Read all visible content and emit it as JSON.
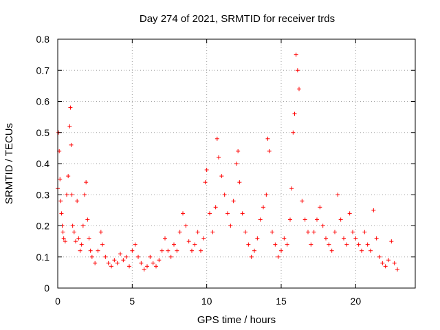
{
  "chart_data": {
    "type": "scatter",
    "title": "Day 274 of 2021, SRMTID for receiver trds",
    "xlabel": "GPS time / hours",
    "ylabel": "SRMTID / TECUs",
    "xlim": [
      0,
      24
    ],
    "ylim": [
      0,
      0.8
    ],
    "xticks": [
      0,
      5,
      10,
      15,
      20
    ],
    "yticks": [
      0,
      0.1,
      0.2,
      0.3,
      0.4,
      0.5,
      0.6,
      0.7,
      0.8
    ],
    "xtick_labels": [
      "0",
      "5",
      "10",
      "15",
      "20"
    ],
    "ytick_labels": [
      "0",
      "0.1",
      "0.2",
      "0.3",
      "0.4",
      "0.5",
      "0.6",
      "0.7",
      "0.8"
    ],
    "grid": true,
    "marker": "+",
    "color": "#ff0000",
    "series": [
      {
        "name": "SRMTID",
        "x": [
          0.0,
          0.05,
          0.1,
          0.15,
          0.2,
          0.25,
          0.3,
          0.35,
          0.4,
          0.5,
          0.6,
          0.7,
          0.8,
          0.85,
          0.9,
          0.95,
          1.0,
          1.1,
          1.2,
          1.3,
          1.4,
          1.5,
          1.6,
          1.7,
          1.8,
          1.9,
          2.0,
          2.1,
          2.2,
          2.3,
          2.5,
          2.7,
          2.9,
          3.0,
          3.2,
          3.4,
          3.6,
          3.8,
          4.0,
          4.2,
          4.4,
          4.6,
          4.8,
          5.0,
          5.2,
          5.4,
          5.6,
          5.8,
          6.0,
          6.2,
          6.4,
          6.6,
          6.8,
          7.0,
          7.2,
          7.4,
          7.6,
          7.8,
          8.0,
          8.2,
          8.4,
          8.6,
          8.8,
          9.0,
          9.2,
          9.4,
          9.6,
          9.8,
          9.9,
          10.0,
          10.2,
          10.4,
          10.6,
          10.7,
          10.8,
          11.0,
          11.2,
          11.4,
          11.6,
          11.8,
          12.0,
          12.1,
          12.2,
          12.4,
          12.6,
          12.8,
          13.0,
          13.2,
          13.4,
          13.6,
          13.8,
          14.0,
          14.1,
          14.2,
          14.4,
          14.6,
          14.8,
          15.0,
          15.2,
          15.4,
          15.6,
          15.7,
          15.8,
          15.9,
          16.0,
          16.1,
          16.2,
          16.4,
          16.6,
          16.8,
          17.0,
          17.2,
          17.4,
          17.6,
          17.8,
          18.0,
          18.2,
          18.4,
          18.6,
          18.8,
          19.0,
          19.2,
          19.4,
          19.6,
          19.8,
          20.0,
          20.2,
          20.4,
          20.6,
          20.8,
          21.0,
          21.2,
          21.4,
          21.6,
          21.8,
          22.0,
          22.2,
          22.4,
          22.6,
          22.8
        ],
        "y": [
          0.32,
          0.5,
          0.44,
          0.35,
          0.28,
          0.24,
          0.2,
          0.18,
          0.16,
          0.15,
          0.3,
          0.36,
          0.52,
          0.58,
          0.46,
          0.3,
          0.2,
          0.18,
          0.15,
          0.28,
          0.16,
          0.12,
          0.14,
          0.2,
          0.3,
          0.34,
          0.22,
          0.16,
          0.12,
          0.1,
          0.08,
          0.12,
          0.18,
          0.14,
          0.1,
          0.08,
          0.07,
          0.09,
          0.08,
          0.11,
          0.09,
          0.1,
          0.07,
          0.12,
          0.14,
          0.1,
          0.08,
          0.06,
          0.07,
          0.1,
          0.08,
          0.07,
          0.09,
          0.12,
          0.16,
          0.12,
          0.1,
          0.14,
          0.12,
          0.18,
          0.24,
          0.2,
          0.15,
          0.12,
          0.14,
          0.18,
          0.12,
          0.16,
          0.34,
          0.38,
          0.24,
          0.18,
          0.26,
          0.48,
          0.42,
          0.36,
          0.3,
          0.24,
          0.2,
          0.28,
          0.4,
          0.44,
          0.34,
          0.24,
          0.18,
          0.14,
          0.1,
          0.12,
          0.16,
          0.22,
          0.26,
          0.3,
          0.48,
          0.44,
          0.18,
          0.14,
          0.1,
          0.12,
          0.16,
          0.14,
          0.22,
          0.32,
          0.5,
          0.56,
          0.75,
          0.7,
          0.64,
          0.28,
          0.22,
          0.18,
          0.14,
          0.18,
          0.22,
          0.26,
          0.2,
          0.16,
          0.14,
          0.12,
          0.18,
          0.3,
          0.22,
          0.16,
          0.14,
          0.24,
          0.18,
          0.16,
          0.14,
          0.12,
          0.18,
          0.14,
          0.12,
          0.25,
          0.16,
          0.1,
          0.08,
          0.07,
          0.09,
          0.15,
          0.08,
          0.06
        ]
      }
    ]
  }
}
